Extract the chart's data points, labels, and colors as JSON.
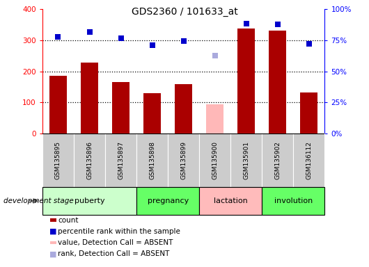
{
  "title": "GDS2360 / 101633_at",
  "samples": [
    "GSM135895",
    "GSM135896",
    "GSM135897",
    "GSM135898",
    "GSM135899",
    "GSM135900",
    "GSM135901",
    "GSM135902",
    "GSM136112"
  ],
  "count_values": [
    185,
    228,
    165,
    130,
    158,
    null,
    338,
    332,
    133
  ],
  "count_absent": [
    null,
    null,
    null,
    null,
    null,
    93,
    null,
    null,
    null
  ],
  "rank_values": [
    311,
    328,
    308,
    285,
    298,
    null,
    355,
    352,
    290
  ],
  "rank_absent": [
    null,
    null,
    null,
    null,
    null,
    252,
    null,
    null,
    null
  ],
  "count_color": "#aa0000",
  "count_absent_color": "#ffb8b8",
  "rank_color": "#0000cc",
  "rank_absent_color": "#aaaadd",
  "ylim_left": [
    0,
    400
  ],
  "ylim_right": [
    0,
    100
  ],
  "yticks_left": [
    0,
    100,
    200,
    300,
    400
  ],
  "yticks_right": [
    0,
    25,
    50,
    75,
    100
  ],
  "yticklabels_right": [
    "0%",
    "25%",
    "50%",
    "75%",
    "100%"
  ],
  "grid_values": [
    100,
    200,
    300
  ],
  "stages": [
    {
      "label": "puberty",
      "indices": [
        0,
        1,
        2
      ],
      "color": "#ccffcc"
    },
    {
      "label": "pregnancy",
      "indices": [
        3,
        4
      ],
      "color": "#66ff66"
    },
    {
      "label": "lactation",
      "indices": [
        5,
        6
      ],
      "color": "#ffbbbb"
    },
    {
      "label": "involution",
      "indices": [
        7,
        8
      ],
      "color": "#66ff66"
    }
  ],
  "sample_bg_color": "#cccccc",
  "legend_items": [
    {
      "label": "count",
      "color": "#aa0000",
      "type": "rect"
    },
    {
      "label": "percentile rank within the sample",
      "color": "#0000cc",
      "type": "square"
    },
    {
      "label": "value, Detection Call = ABSENT",
      "color": "#ffb8b8",
      "type": "rect"
    },
    {
      "label": "rank, Detection Call = ABSENT",
      "color": "#aaaadd",
      "type": "square"
    }
  ],
  "dev_stage_label": "development stage",
  "bar_width": 0.55
}
